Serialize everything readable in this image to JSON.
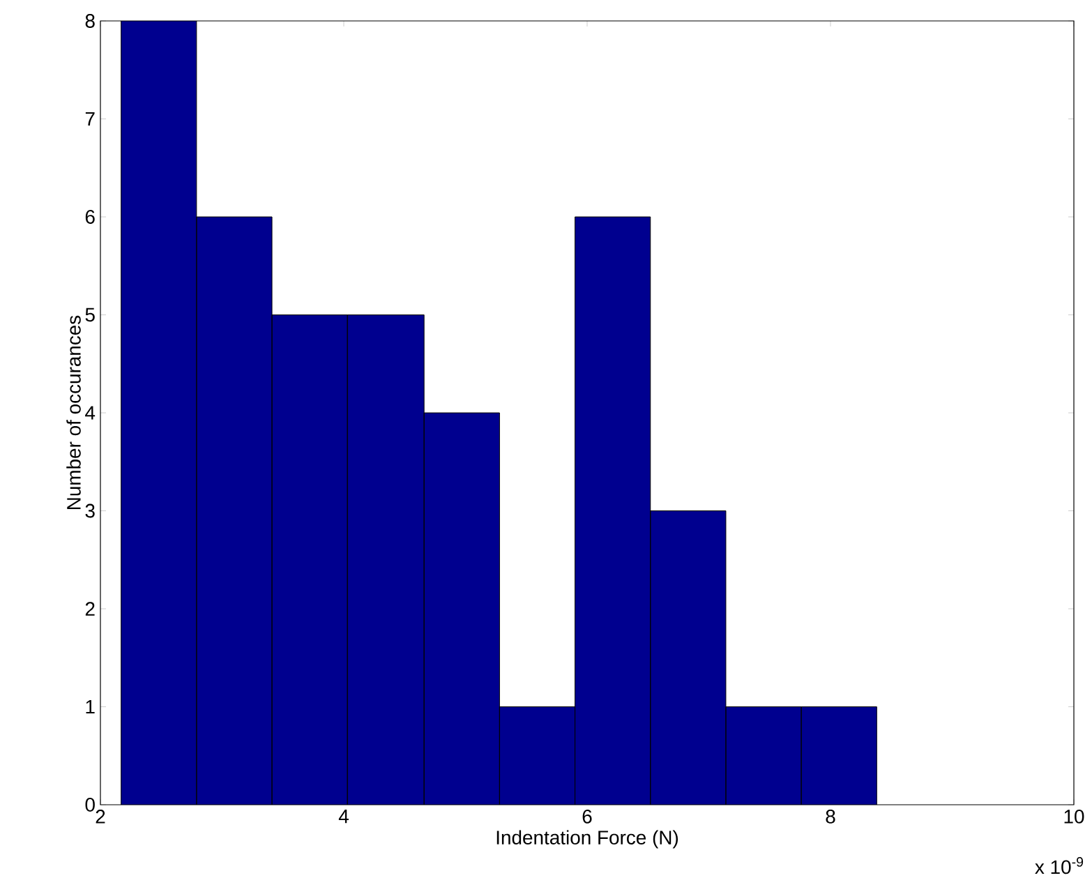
{
  "chart_data": {
    "type": "histogram",
    "xlabel": "Indentation Force (N)",
    "ylabel": "Number of occurances",
    "bins": [
      2.17,
      2.79,
      3.41,
      4.03,
      4.66,
      5.28,
      5.9,
      6.52,
      7.14,
      7.76,
      8.38
    ],
    "values": [
      8,
      6,
      5,
      5,
      4,
      1,
      6,
      3,
      1,
      1
    ],
    "color": "#00008f",
    "xlim": [
      2,
      10
    ],
    "ylim": [
      0,
      8
    ],
    "xticks": [
      2,
      4,
      6,
      8,
      10
    ],
    "yticks": [
      0,
      1,
      2,
      3,
      4,
      5,
      6,
      7,
      8
    ],
    "annotations": [
      "x 10$^{-9}$"
    ]
  }
}
